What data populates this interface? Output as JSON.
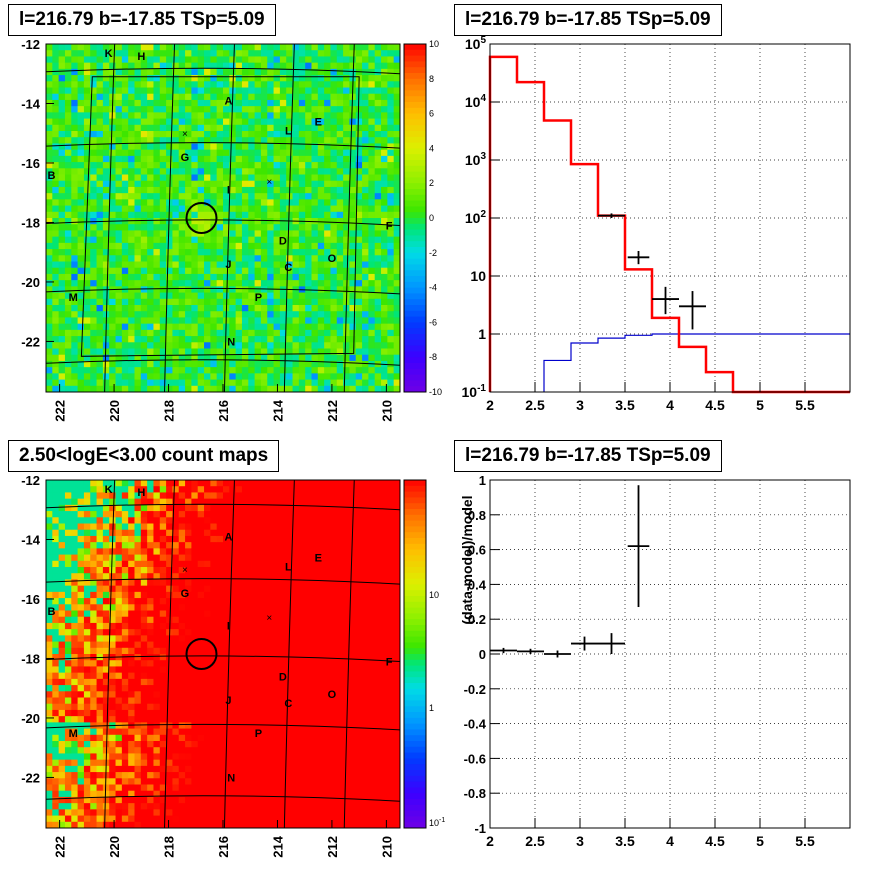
{
  "titles": {
    "map_top": "l=216.79 b=-17.85 TSp=5.09",
    "spec_top": "l=216.79 b=-17.85 TSp=5.09",
    "map_bottom": "2.50<logE<3.00 count maps",
    "resid_bottom": "l=216.79 b=-17.85 TSp=5.09"
  },
  "colors": {
    "model_line": "#ff0000",
    "secondary_line": "#0000cc",
    "data_points": "#000000",
    "circle": "#000000"
  },
  "chart_data": [
    {
      "id": "tsmap",
      "type": "heatmap",
      "title": "l=216.79 b=-17.85 TSp=5.09",
      "x_ticks": [
        "222",
        "220",
        "218",
        "216",
        "214",
        "212",
        "210"
      ],
      "y_ticks": [
        "-12",
        "-14",
        "-16",
        "-18",
        "-20",
        "-22"
      ],
      "colorbar_ticks": [
        "10",
        "8",
        "6",
        "4",
        "2",
        "0",
        "-2",
        "-4",
        "-6",
        "-8",
        "-10"
      ],
      "zlim": [
        -10,
        10
      ],
      "source_labels": [
        "K",
        "H",
        "A",
        "L",
        "E",
        "G",
        "B",
        "I",
        "F",
        "D",
        "J",
        "C",
        "O",
        "M",
        "P",
        "N"
      ],
      "circle_center": [
        216.79,
        -17.85
      ]
    },
    {
      "id": "spectrum",
      "type": "line",
      "title": "l=216.79 b=-17.85 TSp=5.09",
      "xlim": [
        2,
        6
      ],
      "ylim": [
        0.1,
        100000
      ],
      "yscale": "log",
      "x_ticks": [
        "2",
        "2.5",
        "3",
        "3.5",
        "4",
        "4.5",
        "5",
        "5.5"
      ],
      "y_ticks": [
        "10^5",
        "10^4",
        "10^3",
        "10^2",
        "10",
        "1",
        "10^-1"
      ],
      "grid": true,
      "bin_edges": [
        2.0,
        2.3,
        2.6,
        2.9,
        3.2,
        3.5,
        3.8,
        4.1,
        4.4,
        4.7,
        5.0,
        5.3,
        5.6,
        5.9,
        6.0
      ],
      "series": [
        {
          "values": [
            60000,
            22000,
            4800,
            850,
            110,
            13,
            1.9,
            0.6,
            0.22,
            0.1,
            0.1,
            0.1,
            0.1,
            0.1
          ]
        },
        {
          "values": [
            null,
            null,
            0.35,
            0.7,
            0.85,
            0.95,
            1.0,
            1.0,
            1.0,
            1.0,
            1.0,
            1.0,
            1.0,
            1.0
          ]
        }
      ],
      "points": [
        {
          "x": 3.35,
          "y": 110,
          "xerr": 0.15,
          "ylo": 100,
          "yhi": 120
        },
        {
          "x": 3.65,
          "y": 21,
          "xerr": 0.12,
          "ylo": 16,
          "yhi": 27
        },
        {
          "x": 3.95,
          "y": 4,
          "xerr": 0.15,
          "ylo": 2.2,
          "yhi": 6.5
        },
        {
          "x": 4.25,
          "y": 3,
          "xerr": 0.15,
          "ylo": 1.2,
          "yhi": 5.5
        }
      ]
    },
    {
      "id": "countmap",
      "type": "heatmap",
      "title": "2.50<logE<3.00 count maps",
      "x_ticks": [
        "222",
        "220",
        "218",
        "216",
        "214",
        "212",
        "210"
      ],
      "y_ticks": [
        "-12",
        "-14",
        "-16",
        "-18",
        "-20",
        "-22"
      ],
      "colorbar_ticks": [
        "10",
        "1",
        "10^-1"
      ],
      "zscale": "log",
      "source_labels": [
        "K",
        "H",
        "A",
        "L",
        "E",
        "G",
        "B",
        "I",
        "F",
        "D",
        "J",
        "C",
        "O",
        "M",
        "P",
        "N"
      ],
      "circle_center": [
        216.79,
        -17.85
      ]
    },
    {
      "id": "residual",
      "type": "scatter",
      "title": "l=216.79 b=-17.85 TSp=5.09",
      "ylabel": "(data-model)/model",
      "xlim": [
        2,
        6
      ],
      "ylim": [
        -1,
        1
      ],
      "x_ticks": [
        "2",
        "2.5",
        "3",
        "3.5",
        "4",
        "4.5",
        "5",
        "5.5"
      ],
      "y_ticks": [
        "1",
        "0.8",
        "0.6",
        "0.4",
        "0.2",
        "0",
        "-0.2",
        "-0.4",
        "-0.6",
        "-0.8",
        "-1"
      ],
      "grid": true,
      "points": [
        {
          "x": 2.15,
          "y": 0.02,
          "xerr": 0.15,
          "yerr": 0.015
        },
        {
          "x": 2.45,
          "y": 0.015,
          "xerr": 0.15,
          "yerr": 0.015
        },
        {
          "x": 2.75,
          "y": 0.0,
          "xerr": 0.15,
          "yerr": 0.02
        },
        {
          "x": 3.05,
          "y": 0.06,
          "xerr": 0.15,
          "yerr": 0.04
        },
        {
          "x": 3.35,
          "y": 0.06,
          "xerr": 0.15,
          "yerr": 0.06
        },
        {
          "x": 3.65,
          "y": 0.62,
          "xerr": 0.12,
          "yerr": 0.35
        }
      ]
    }
  ]
}
